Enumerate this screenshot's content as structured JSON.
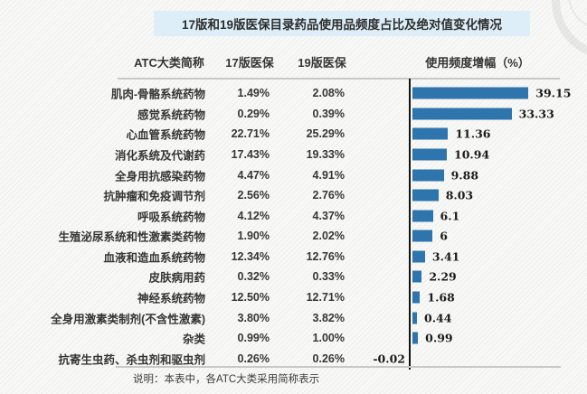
{
  "title": "17版和19版医保目录药品使用品频度占比及绝对值变化情况",
  "header": {
    "col_name": "ATC大类简称",
    "col_v17": "17版医保",
    "col_v19": "19版医保",
    "col_growth": "使用频度增幅（%）"
  },
  "footnote": "说明：本表中，各ATC大类采用简称表示",
  "colors": {
    "title_bg": "#ddeef8",
    "bar": "#2e75ad",
    "axis": "#141414",
    "divider": "#c8c8c8"
  },
  "chart_data": {
    "type": "bar",
    "orientation": "horizontal",
    "title": "17版和19版医保目录药品使用品频度占比及绝对值变化情况",
    "categories": [
      "肌肉-骨骼系统药物",
      "感觉系统药物",
      "心血管系统药物",
      "消化系统及代谢药",
      "全身用抗感染药物",
      "抗肿瘤和免疫调节剂",
      "呼吸系统药物",
      "生殖泌尿系统和性激素类药物",
      "血液和造血系统药物",
      "皮肤病用药",
      "神经系统药物",
      "全身用激素类制剂(不含性激素)",
      "杂类",
      "抗寄生虫药、杀虫剂和驱虫剂"
    ],
    "series": [
      {
        "name": "17版医保",
        "values": [
          "1.49%",
          "0.29%",
          "22.71%",
          "17.43%",
          "4.47%",
          "2.56%",
          "4.12%",
          "1.90%",
          "12.34%",
          "0.32%",
          "12.50%",
          "3.80%",
          "0.99%",
          "0.26%"
        ]
      },
      {
        "name": "19版医保",
        "values": [
          "2.08%",
          "0.39%",
          "25.29%",
          "19.33%",
          "4.91%",
          "2.76%",
          "4.37%",
          "2.02%",
          "12.76%",
          "0.33%",
          "12.71%",
          "3.82%",
          "1.00%",
          "0.26%"
        ]
      },
      {
        "name": "使用频度增幅（%）",
        "values": [
          39.15,
          33.33,
          11.36,
          10.94,
          9.88,
          8.03,
          6.1,
          6,
          3.41,
          2.29,
          1.68,
          0.44,
          0.99,
          -0.02
        ]
      }
    ],
    "value_labels": [
      "39.15",
      "33.33",
      "11.36",
      "10.94",
      "9.88",
      "8.03",
      "6.1",
      "6",
      "3.41",
      "2.29",
      "1.68",
      "0.44",
      "0.99",
      "-0.02"
    ],
    "xlim": [
      0,
      45
    ],
    "bar_color": "#2e75ad",
    "grid": false,
    "legend_position": "none"
  }
}
